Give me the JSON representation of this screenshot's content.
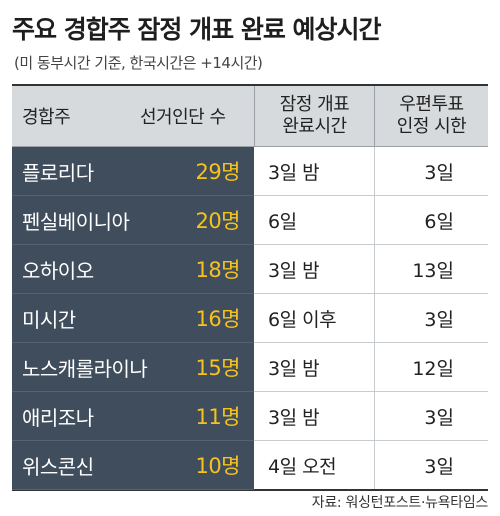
{
  "title": "주요 경합주 잠정 개표 완료 예상시간",
  "subtitle": "(미 동부시간 기준, 한국시간은 +14시간)",
  "table": {
    "headers": {
      "state": "경합주",
      "electors": "선거인단 수",
      "count_complete": [
        "잠정 개표",
        "완료시간"
      ],
      "mail_deadline": [
        "우편투표",
        "인정 시한"
      ]
    },
    "rows": [
      {
        "state": "플로리다",
        "electors": "29명",
        "count_complete": "3일 밤",
        "mail_deadline": "3일"
      },
      {
        "state": "펜실베이니아",
        "electors": "20명",
        "count_complete": "6일",
        "mail_deadline": "6일"
      },
      {
        "state": "오하이오",
        "electors": "18명",
        "count_complete": "3일 밤",
        "mail_deadline": "13일"
      },
      {
        "state": "미시간",
        "electors": "16명",
        "count_complete": "6일 이후",
        "mail_deadline": "3일"
      },
      {
        "state": "노스캐롤라이나",
        "electors": "15명",
        "count_complete": "3일 밤",
        "mail_deadline": "12일"
      },
      {
        "state": "애리조나",
        "electors": "11명",
        "count_complete": "3일 밤",
        "mail_deadline": "3일"
      },
      {
        "state": "위스콘신",
        "electors": "10명",
        "count_complete": "4일 오전",
        "mail_deadline": "3일"
      }
    ]
  },
  "source": "자료: 워싱턴포스트·뉴욕타임스",
  "colors": {
    "left_column_bg": "#3f4d5c",
    "elector_text": "#f6c21c",
    "header_bg": "#d7dadd"
  }
}
